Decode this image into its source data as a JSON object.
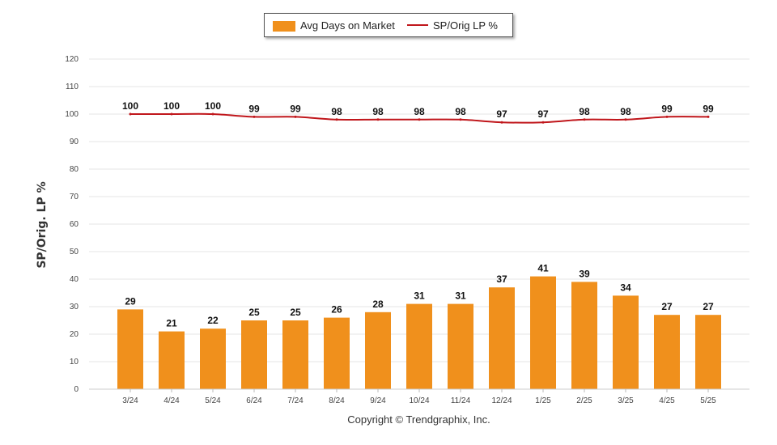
{
  "legend": {
    "bar_label": "Avg Days on Market",
    "line_label": "SP/Orig LP %"
  },
  "y_axis_title": "SP/Orig. LP %",
  "copyright": "Copyright © Trendgraphix, Inc.",
  "colors": {
    "bar": "#f0901c",
    "line": "#c0161b",
    "grid": "#e6e6e6"
  },
  "chart_data": {
    "type": "bar",
    "categories": [
      "3/24",
      "4/24",
      "5/24",
      "6/24",
      "7/24",
      "8/24",
      "9/24",
      "10/24",
      "11/24",
      "12/24",
      "1/25",
      "2/25",
      "3/25",
      "4/25",
      "5/25"
    ],
    "series": [
      {
        "name": "Avg Days on Market",
        "type": "bar",
        "values": [
          29,
          21,
          22,
          25,
          25,
          26,
          28,
          31,
          31,
          37,
          41,
          39,
          34,
          27,
          27
        ]
      },
      {
        "name": "SP/Orig LP %",
        "type": "line",
        "values": [
          100,
          100,
          100,
          99,
          99,
          98,
          98,
          98,
          98,
          97,
          97,
          98,
          98,
          99,
          99
        ]
      }
    ],
    "ylabel": "SP/Orig. LP %",
    "ylim": [
      0,
      120
    ],
    "yticks": [
      0,
      10,
      20,
      30,
      40,
      50,
      60,
      70,
      80,
      90,
      100,
      110,
      120
    ],
    "grid": true,
    "legend_position": "top-center"
  }
}
